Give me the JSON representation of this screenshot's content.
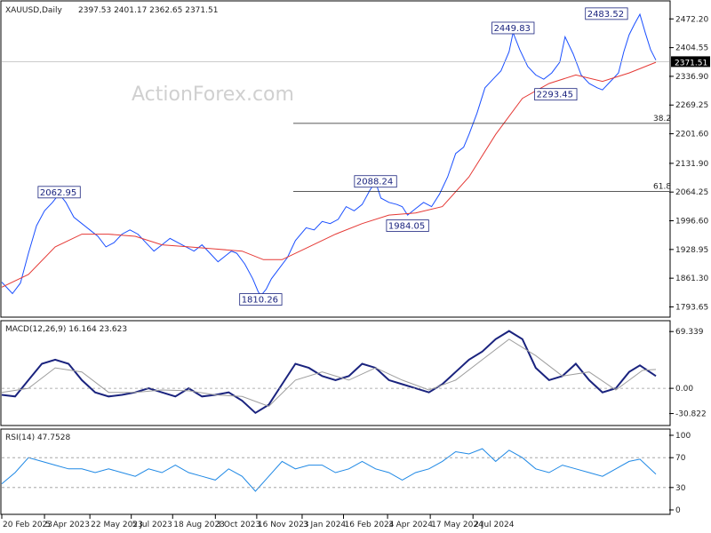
{
  "chart_data": {
    "type": "line",
    "header": {
      "symbol": "XAUUSD,Daily",
      "ohlc": "2397.53 2401.17 2362.65 2371.51",
      "watermark": "ActionForex.com"
    },
    "price_panel": {
      "y_ticks": [
        "2472.20",
        "2404.55",
        "2336.90",
        "2269.25",
        "2201.60",
        "2131.90",
        "2064.25",
        "1996.60",
        "1928.95",
        "1861.30",
        "1793.65"
      ],
      "y_tick_values": [
        2472.2,
        2404.55,
        2336.9,
        2269.25,
        2201.6,
        2131.9,
        2064.25,
        1996.6,
        1928.95,
        1861.3,
        1793.65
      ],
      "ylim": [
        1780,
        2500
      ],
      "current_price": "2371.51",
      "current_value": 2371.51,
      "fib_levels": [
        {
          "label": "38.2",
          "value": 2226
        },
        {
          "label": "61.8",
          "value": 2066
        }
      ],
      "annotations": [
        {
          "label": "2062.95",
          "x": 43,
          "y": 2062.95
        },
        {
          "label": "1810.26",
          "x": 194,
          "y": 1810.26
        },
        {
          "label": "2088.24",
          "x": 280,
          "y": 2088.24
        },
        {
          "label": "1984.05",
          "x": 304,
          "y": 1984.05
        },
        {
          "label": "2449.83",
          "x": 383,
          "y": 2449.83
        },
        {
          "label": "2293.45",
          "x": 415,
          "y": 2293.45
        },
        {
          "label": "2483.52",
          "x": 453,
          "y": 2483.52
        }
      ],
      "series": [
        {
          "name": "",
          "color": "#1a4fff",
          "values": [
            [
              0,
              1852
            ],
            [
              8,
              1825
            ],
            [
              14,
              1850
            ],
            [
              20,
              1920
            ],
            [
              26,
              1985
            ],
            [
              32,
              2020
            ],
            [
              38,
              2040
            ],
            [
              43,
              2060
            ],
            [
              48,
              2040
            ],
            [
              54,
              2005
            ],
            [
              60,
              1990
            ],
            [
              66,
              1975
            ],
            [
              72,
              1960
            ],
            [
              78,
              1935
            ],
            [
              84,
              1945
            ],
            [
              90,
              1965
            ],
            [
              96,
              1975
            ],
            [
              102,
              1965
            ],
            [
              108,
              1945
            ],
            [
              114,
              1925
            ],
            [
              120,
              1940
            ],
            [
              126,
              1955
            ],
            [
              132,
              1945
            ],
            [
              138,
              1935
            ],
            [
              144,
              1925
            ],
            [
              150,
              1940
            ],
            [
              156,
              1920
            ],
            [
              162,
              1900
            ],
            [
              168,
              1915
            ],
            [
              172,
              1925
            ],
            [
              176,
              1920
            ],
            [
              182,
              1895
            ],
            [
              188,
              1860
            ],
            [
              192,
              1830
            ],
            [
              194,
              1820
            ],
            [
              198,
              1835
            ],
            [
              202,
              1860
            ],
            [
              208,
              1885
            ],
            [
              214,
              1910
            ],
            [
              220,
              1950
            ],
            [
              228,
              1980
            ],
            [
              234,
              1975
            ],
            [
              240,
              1995
            ],
            [
              246,
              1990
            ],
            [
              252,
              2000
            ],
            [
              258,
              2030
            ],
            [
              264,
              2020
            ],
            [
              270,
              2035
            ],
            [
              276,
              2070
            ],
            [
              280,
              2088
            ],
            [
              284,
              2050
            ],
            [
              290,
              2040
            ],
            [
              296,
              2035
            ],
            [
              300,
              2030
            ],
            [
              304,
              2010
            ],
            [
              310,
              2025
            ],
            [
              316,
              2040
            ],
            [
              322,
              2030
            ],
            [
              328,
              2060
            ],
            [
              334,
              2100
            ],
            [
              340,
              2155
            ],
            [
              346,
              2170
            ],
            [
              350,
              2200
            ],
            [
              356,
              2250
            ],
            [
              362,
              2310
            ],
            [
              368,
              2330
            ],
            [
              374,
              2350
            ],
            [
              380,
              2395
            ],
            [
              383,
              2440
            ],
            [
              388,
              2400
            ],
            [
              394,
              2360
            ],
            [
              400,
              2340
            ],
            [
              406,
              2330
            ],
            [
              412,
              2345
            ],
            [
              418,
              2370
            ],
            [
              422,
              2430
            ],
            [
              428,
              2390
            ],
            [
              434,
              2340
            ],
            [
              440,
              2320
            ],
            [
              446,
              2310
            ],
            [
              450,
              2305
            ],
            [
              456,
              2325
            ],
            [
              462,
              2345
            ],
            [
              466,
              2395
            ],
            [
              470,
              2435
            ],
            [
              474,
              2460
            ],
            [
              478,
              2483
            ],
            [
              482,
              2440
            ],
            [
              486,
              2400
            ],
            [
              490,
              2375
            ]
          ]
        },
        {
          "name": "",
          "color": "#e53935",
          "values": [
            [
              0,
              1840
            ],
            [
              20,
              1870
            ],
            [
              40,
              1935
            ],
            [
              60,
              1965
            ],
            [
              80,
              1965
            ],
            [
              100,
              1960
            ],
            [
              120,
              1940
            ],
            [
              140,
              1935
            ],
            [
              160,
              1930
            ],
            [
              180,
              1925
            ],
            [
              196,
              1905
            ],
            [
              210,
              1905
            ],
            [
              230,
              1935
            ],
            [
              250,
              1965
            ],
            [
              270,
              1990
            ],
            [
              290,
              2010
            ],
            [
              310,
              2015
            ],
            [
              330,
              2030
            ],
            [
              350,
              2100
            ],
            [
              370,
              2200
            ],
            [
              390,
              2285
            ],
            [
              410,
              2320
            ],
            [
              430,
              2340
            ],
            [
              450,
              2325
            ],
            [
              470,
              2345
            ],
            [
              490,
              2370
            ]
          ]
        }
      ]
    },
    "macd_panel": {
      "label": "MACD(12,26,9) 16.164 23.623",
      "y_ticks": [
        "69.339",
        "0.00",
        "-30.822"
      ],
      "y_tick_values": [
        69.339,
        0,
        -30.822
      ],
      "ylim": [
        -40,
        75
      ],
      "series": [
        {
          "name": "",
          "color": "#1a237e",
          "values": [
            [
              0,
              -8
            ],
            [
              10,
              -10
            ],
            [
              20,
              10
            ],
            [
              30,
              30
            ],
            [
              40,
              35
            ],
            [
              50,
              30
            ],
            [
              60,
              10
            ],
            [
              70,
              -5
            ],
            [
              80,
              -10
            ],
            [
              90,
              -8
            ],
            [
              100,
              -5
            ],
            [
              110,
              0
            ],
            [
              120,
              -5
            ],
            [
              130,
              -10
            ],
            [
              140,
              0
            ],
            [
              150,
              -10
            ],
            [
              160,
              -8
            ],
            [
              170,
              -5
            ],
            [
              180,
              -15
            ],
            [
              190,
              -30
            ],
            [
              200,
              -20
            ],
            [
              210,
              5
            ],
            [
              220,
              30
            ],
            [
              230,
              25
            ],
            [
              240,
              15
            ],
            [
              250,
              10
            ],
            [
              260,
              15
            ],
            [
              270,
              30
            ],
            [
              280,
              25
            ],
            [
              290,
              10
            ],
            [
              300,
              5
            ],
            [
              310,
              0
            ],
            [
              320,
              -5
            ],
            [
              330,
              5
            ],
            [
              340,
              20
            ],
            [
              350,
              35
            ],
            [
              360,
              45
            ],
            [
              370,
              60
            ],
            [
              380,
              70
            ],
            [
              390,
              60
            ],
            [
              400,
              25
            ],
            [
              410,
              10
            ],
            [
              420,
              15
            ],
            [
              430,
              30
            ],
            [
              440,
              10
            ],
            [
              450,
              -5
            ],
            [
              460,
              0
            ],
            [
              470,
              20
            ],
            [
              478,
              28
            ],
            [
              490,
              15
            ]
          ]
        },
        {
          "name": "",
          "color": "#9e9e9e",
          "values": [
            [
              0,
              -5
            ],
            [
              20,
              0
            ],
            [
              40,
              25
            ],
            [
              60,
              20
            ],
            [
              80,
              -5
            ],
            [
              100,
              -5
            ],
            [
              120,
              -2
            ],
            [
              140,
              -3
            ],
            [
              160,
              -8
            ],
            [
              180,
              -10
            ],
            [
              200,
              -22
            ],
            [
              220,
              10
            ],
            [
              240,
              20
            ],
            [
              260,
              10
            ],
            [
              280,
              25
            ],
            [
              300,
              10
            ],
            [
              320,
              -2
            ],
            [
              340,
              10
            ],
            [
              360,
              35
            ],
            [
              380,
              60
            ],
            [
              400,
              40
            ],
            [
              420,
              15
            ],
            [
              440,
              20
            ],
            [
              460,
              -2
            ],
            [
              480,
              22
            ],
            [
              490,
              23
            ]
          ]
        }
      ]
    },
    "rsi_panel": {
      "label": "RSI(14) 47.7528",
      "y_ticks": [
        "100",
        "70",
        "30",
        "0"
      ],
      "y_tick_values": [
        100,
        70,
        30,
        0
      ],
      "ylim": [
        0,
        100
      ],
      "series": [
        {
          "name": "",
          "color": "#1e88e5",
          "values": [
            [
              0,
              35
            ],
            [
              10,
              50
            ],
            [
              20,
              70
            ],
            [
              30,
              65
            ],
            [
              40,
              60
            ],
            [
              50,
              55
            ],
            [
              60,
              55
            ],
            [
              70,
              50
            ],
            [
              80,
              55
            ],
            [
              90,
              50
            ],
            [
              100,
              45
            ],
            [
              110,
              55
            ],
            [
              120,
              50
            ],
            [
              130,
              60
            ],
            [
              140,
              50
            ],
            [
              150,
              45
            ],
            [
              160,
              40
            ],
            [
              170,
              55
            ],
            [
              180,
              45
            ],
            [
              190,
              25
            ],
            [
              200,
              45
            ],
            [
              210,
              65
            ],
            [
              220,
              55
            ],
            [
              230,
              60
            ],
            [
              240,
              60
            ],
            [
              250,
              50
            ],
            [
              260,
              55
            ],
            [
              270,
              65
            ],
            [
              280,
              55
            ],
            [
              290,
              50
            ],
            [
              300,
              40
            ],
            [
              310,
              50
            ],
            [
              320,
              55
            ],
            [
              330,
              65
            ],
            [
              340,
              78
            ],
            [
              350,
              75
            ],
            [
              360,
              82
            ],
            [
              370,
              65
            ],
            [
              380,
              80
            ],
            [
              390,
              70
            ],
            [
              400,
              55
            ],
            [
              410,
              50
            ],
            [
              420,
              60
            ],
            [
              430,
              55
            ],
            [
              440,
              50
            ],
            [
              450,
              45
            ],
            [
              460,
              55
            ],
            [
              470,
              65
            ],
            [
              478,
              68
            ],
            [
              490,
              48
            ]
          ]
        }
      ]
    },
    "x_axis": {
      "ticks": [
        {
          "label": "20 Feb 2023",
          "x": 0
        },
        {
          "label": "5 Apr 2023",
          "x": 32
        },
        {
          "label": "22 May 2023",
          "x": 66
        },
        {
          "label": "5 Jul 2023",
          "x": 97
        },
        {
          "label": "18 Aug 2023",
          "x": 128
        },
        {
          "label": "3 Oct 2023",
          "x": 160
        },
        {
          "label": "16 Nov 2023",
          "x": 191
        },
        {
          "label": "3 Jan 2024",
          "x": 225
        },
        {
          "label": "16 Feb 2024",
          "x": 256
        },
        {
          "label": "3 Apr 2024",
          "x": 289
        },
        {
          "label": "17 May 2024",
          "x": 321
        },
        {
          "label": "2 Jul 2024",
          "x": 353
        }
      ],
      "xlim": [
        0,
        500
      ]
    }
  }
}
